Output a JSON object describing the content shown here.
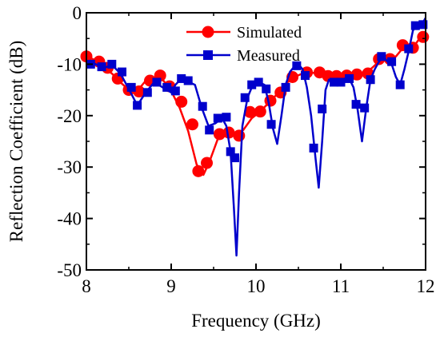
{
  "chart_data": {
    "type": "line",
    "title": "",
    "xlabel": "Frequency (GHz)",
    "ylabel": "Reflection Coefficient (dB)",
    "xlim": [
      8,
      12
    ],
    "ylim": [
      -50,
      0
    ],
    "xticks": [
      8,
      9,
      10,
      11,
      12
    ],
    "yticks": [
      0,
      -10,
      -20,
      -30,
      -40,
      -50
    ],
    "xtick_labels": [
      "8",
      "9",
      "10",
      "11",
      "12"
    ],
    "ytick_labels": [
      "0",
      "-10",
      "-20",
      "-30",
      "-40",
      "-50"
    ],
    "grid": false,
    "legend_position": "top-center",
    "series": [
      {
        "name": "Simulated",
        "color": "#ff0000",
        "marker": "circle",
        "line": [
          [
            8.0,
            -8.5
          ],
          [
            8.1,
            -9.2
          ],
          [
            8.2,
            -10.6
          ],
          [
            8.3,
            -11.8
          ],
          [
            8.4,
            -13.5
          ],
          [
            8.5,
            -15.0
          ],
          [
            8.6,
            -15.2
          ],
          [
            8.7,
            -13.2
          ],
          [
            8.8,
            -12.6
          ],
          [
            8.9,
            -13.0
          ],
          [
            9.0,
            -15.2
          ],
          [
            9.1,
            -18.5
          ],
          [
            9.2,
            -23.0
          ],
          [
            9.3,
            -29.5
          ],
          [
            9.38,
            -31.5
          ],
          [
            9.45,
            -29.0
          ],
          [
            9.55,
            -24.5
          ],
          [
            9.65,
            -23.5
          ],
          [
            9.75,
            -23.8
          ],
          [
            9.85,
            -22.8
          ],
          [
            9.95,
            -20.5
          ],
          [
            10.05,
            -19.2
          ],
          [
            10.15,
            -17.5
          ],
          [
            10.25,
            -15.8
          ],
          [
            10.35,
            -13.8
          ],
          [
            10.45,
            -12.5
          ],
          [
            10.55,
            -11.8
          ],
          [
            10.65,
            -11.7
          ],
          [
            10.75,
            -11.7
          ],
          [
            10.85,
            -12.0
          ],
          [
            10.95,
            -12.3
          ],
          [
            11.05,
            -12.2
          ],
          [
            11.15,
            -12.0
          ],
          [
            11.25,
            -11.8
          ],
          [
            11.35,
            -11.0
          ],
          [
            11.45,
            -9.5
          ],
          [
            11.55,
            -9.0
          ],
          [
            11.65,
            -8.5
          ],
          [
            11.75,
            -6.5
          ],
          [
            11.85,
            -6.8
          ],
          [
            11.95,
            -4.5
          ],
          [
            12.0,
            -4.0
          ]
        ],
        "markers": [
          [
            8.0,
            -8.5
          ],
          [
            8.15,
            -9.5
          ],
          [
            8.25,
            -10.7
          ],
          [
            8.37,
            -12.8
          ],
          [
            8.5,
            -15.0
          ],
          [
            8.62,
            -15.3
          ],
          [
            8.75,
            -13.2
          ],
          [
            8.87,
            -12.2
          ],
          [
            8.98,
            -14.3
          ],
          [
            9.12,
            -17.3
          ],
          [
            9.25,
            -21.7
          ],
          [
            9.32,
            -30.8
          ],
          [
            9.42,
            -29.2
          ],
          [
            9.57,
            -23.6
          ],
          [
            9.68,
            -23.3
          ],
          [
            9.8,
            -23.9
          ],
          [
            9.93,
            -19.3
          ],
          [
            10.05,
            -19.2
          ],
          [
            10.17,
            -17.1
          ],
          [
            10.29,
            -15.5
          ],
          [
            10.43,
            -12.5
          ],
          [
            10.6,
            -11.6
          ],
          [
            10.75,
            -11.6
          ],
          [
            10.85,
            -12.3
          ],
          [
            10.95,
            -12.3
          ],
          [
            11.07,
            -12.2
          ],
          [
            11.19,
            -12.0
          ],
          [
            11.32,
            -11.8
          ],
          [
            11.45,
            -9.0
          ],
          [
            11.58,
            -9.0
          ],
          [
            11.73,
            -6.3
          ],
          [
            11.85,
            -6.8
          ],
          [
            11.97,
            -4.7
          ]
        ]
      },
      {
        "name": "Measured",
        "color": "#0000cc",
        "marker": "square",
        "line": [
          [
            8.0,
            -10.2
          ],
          [
            8.1,
            -9.9
          ],
          [
            8.2,
            -10.8
          ],
          [
            8.3,
            -10.1
          ],
          [
            8.4,
            -11.8
          ],
          [
            8.5,
            -14.8
          ],
          [
            8.6,
            -18.0
          ],
          [
            8.7,
            -15.5
          ],
          [
            8.8,
            -13.5
          ],
          [
            8.9,
            -14.5
          ],
          [
            9.0,
            -15.5
          ],
          [
            9.05,
            -14.0
          ],
          [
            9.12,
            -12.8
          ],
          [
            9.2,
            -13.4
          ],
          [
            9.28,
            -14.0
          ],
          [
            9.36,
            -18.5
          ],
          [
            9.44,
            -22.0
          ],
          [
            9.52,
            -21.5
          ],
          [
            9.6,
            -20.5
          ],
          [
            9.65,
            -22.0
          ],
          [
            9.7,
            -27.0
          ],
          [
            9.74,
            -38.0
          ],
          [
            9.77,
            -47.2
          ],
          [
            9.8,
            -35.0
          ],
          [
            9.84,
            -22.0
          ],
          [
            9.9,
            -16.5
          ],
          [
            9.95,
            -14.5
          ],
          [
            10.0,
            -13.5
          ],
          [
            10.05,
            -13.6
          ],
          [
            10.1,
            -14.0
          ],
          [
            10.15,
            -17.5
          ],
          [
            10.2,
            -22.5
          ],
          [
            10.25,
            -25.5
          ],
          [
            10.3,
            -20.0
          ],
          [
            10.35,
            -14.0
          ],
          [
            10.4,
            -11.5
          ],
          [
            10.45,
            -10.5
          ],
          [
            10.5,
            -10.0
          ],
          [
            10.55,
            -11.0
          ],
          [
            10.6,
            -14.5
          ],
          [
            10.65,
            -20.0
          ],
          [
            10.7,
            -28.0
          ],
          [
            10.74,
            -34.0
          ],
          [
            10.78,
            -25.0
          ],
          [
            10.82,
            -15.0
          ],
          [
            10.86,
            -13.0
          ],
          [
            10.9,
            -12.9
          ],
          [
            10.95,
            -13.0
          ],
          [
            11.0,
            -13.0
          ],
          [
            11.05,
            -12.8
          ],
          [
            11.1,
            -12.8
          ],
          [
            11.15,
            -14.5
          ],
          [
            11.2,
            -19.0
          ],
          [
            11.25,
            -25.0
          ],
          [
            11.3,
            -18.5
          ],
          [
            11.35,
            -13.0
          ],
          [
            11.4,
            -11.0
          ],
          [
            11.45,
            -9.5
          ],
          [
            11.5,
            -8.5
          ],
          [
            11.55,
            -9.5
          ],
          [
            11.6,
            -10.0
          ],
          [
            11.65,
            -12.5
          ],
          [
            11.7,
            -14.0
          ],
          [
            11.75,
            -11.0
          ],
          [
            11.8,
            -7.5
          ],
          [
            11.85,
            -3.5
          ],
          [
            11.9,
            -2.0
          ],
          [
            11.95,
            -2.5
          ],
          [
            12.0,
            -1.0
          ]
        ],
        "markers": [
          [
            8.05,
            -10.0
          ],
          [
            8.18,
            -10.5
          ],
          [
            8.3,
            -10.0
          ],
          [
            8.42,
            -11.5
          ],
          [
            8.53,
            -14.5
          ],
          [
            8.6,
            -18.0
          ],
          [
            8.72,
            -15.5
          ],
          [
            8.83,
            -13.5
          ],
          [
            8.95,
            -14.5
          ],
          [
            9.05,
            -15.2
          ],
          [
            9.12,
            -12.8
          ],
          [
            9.2,
            -13.2
          ],
          [
            9.37,
            -18.2
          ],
          [
            9.45,
            -22.8
          ],
          [
            9.55,
            -20.5
          ],
          [
            9.65,
            -20.3
          ],
          [
            9.7,
            -27.0
          ],
          [
            9.75,
            -28.2
          ],
          [
            9.87,
            -16.5
          ],
          [
            9.95,
            -14.0
          ],
          [
            10.03,
            -13.5
          ],
          [
            10.12,
            -14.8
          ],
          [
            10.18,
            -21.7
          ],
          [
            10.35,
            -14.5
          ],
          [
            10.48,
            -10.3
          ],
          [
            10.58,
            -12.2
          ],
          [
            10.68,
            -26.3
          ],
          [
            10.78,
            -18.7
          ],
          [
            10.92,
            -13.5
          ],
          [
            11.0,
            -13.5
          ],
          [
            11.1,
            -12.8
          ],
          [
            11.18,
            -17.8
          ],
          [
            11.28,
            -18.5
          ],
          [
            11.35,
            -13.0
          ],
          [
            11.48,
            -8.5
          ],
          [
            11.6,
            -9.5
          ],
          [
            11.7,
            -14.0
          ],
          [
            11.8,
            -7.0
          ],
          [
            11.88,
            -2.5
          ],
          [
            11.97,
            -2.3
          ]
        ]
      }
    ]
  }
}
